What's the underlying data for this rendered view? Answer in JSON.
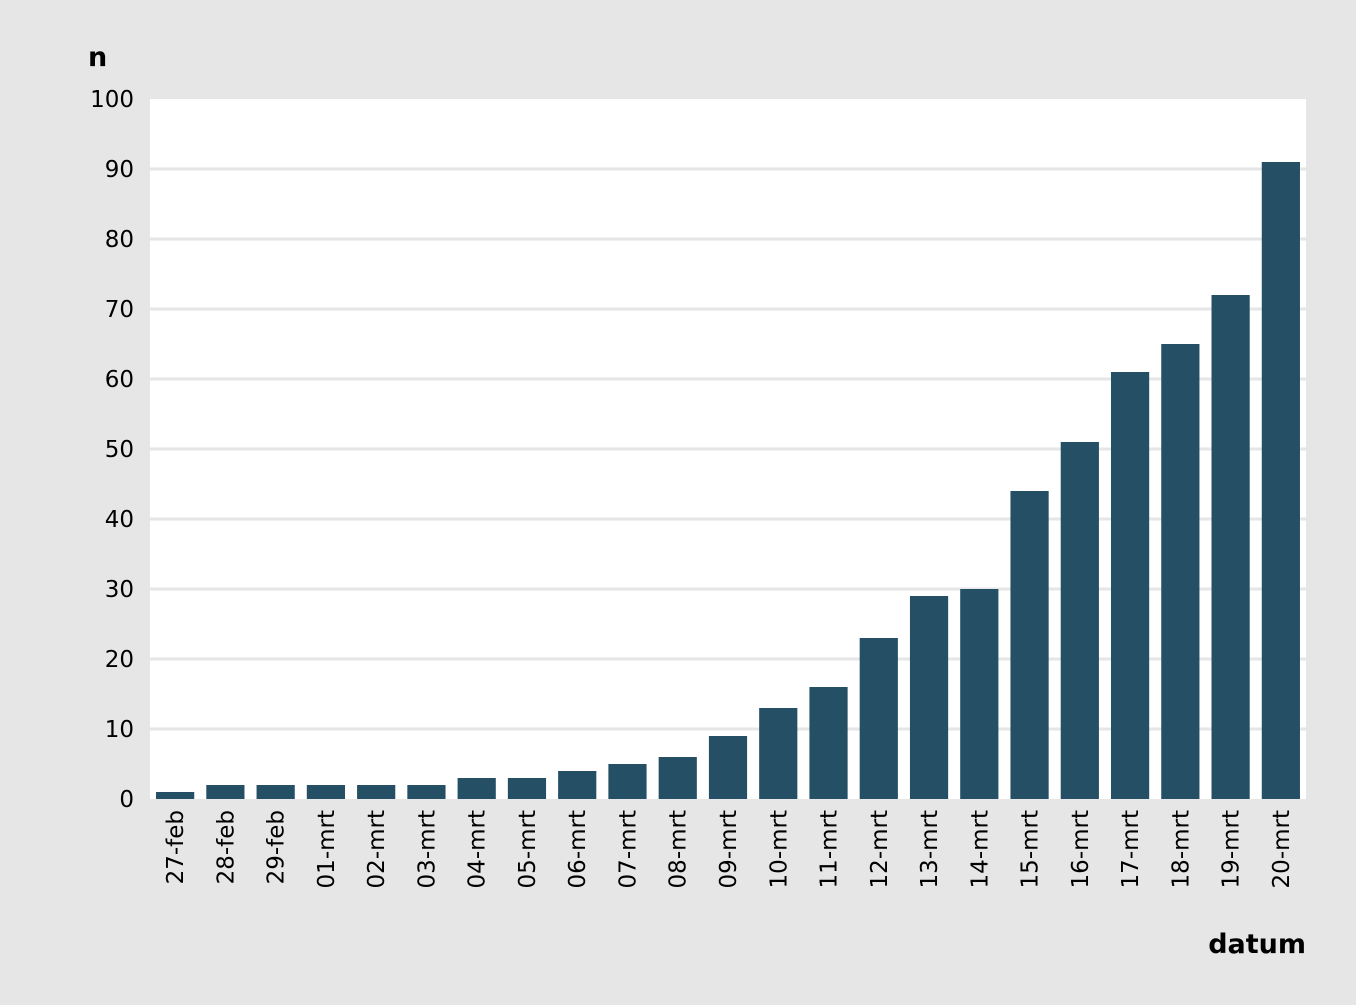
{
  "chart_data": {
    "type": "bar",
    "title": "",
    "ylabel": "n",
    "xlabel": "datum",
    "ylim": [
      0,
      100
    ],
    "yticks": [
      0,
      10,
      20,
      30,
      40,
      50,
      60,
      70,
      80,
      90,
      100
    ],
    "grid": true,
    "legend": "none",
    "categories": [
      "27-feb",
      "28-feb",
      "29-feb",
      "01-mrt",
      "02-mrt",
      "03-mrt",
      "04-mrt",
      "05-mrt",
      "06-mrt",
      "07-mrt",
      "08-mrt",
      "09-mrt",
      "10-mrt",
      "11-mrt",
      "12-mrt",
      "13-mrt",
      "14-mrt",
      "15-mrt",
      "16-mrt",
      "17-mrt",
      "18-mrt",
      "19-mrt",
      "20-mrt"
    ],
    "values": [
      1,
      2,
      2,
      2,
      2,
      2,
      3,
      3,
      4,
      5,
      6,
      9,
      13,
      16,
      23,
      29,
      30,
      44,
      51,
      61,
      65,
      72,
      91
    ],
    "colors": {
      "bar": "#244f64",
      "plot_background": "#ffffff",
      "page_background": "#e6e6e6",
      "gridline": "#e6e6e6"
    }
  }
}
